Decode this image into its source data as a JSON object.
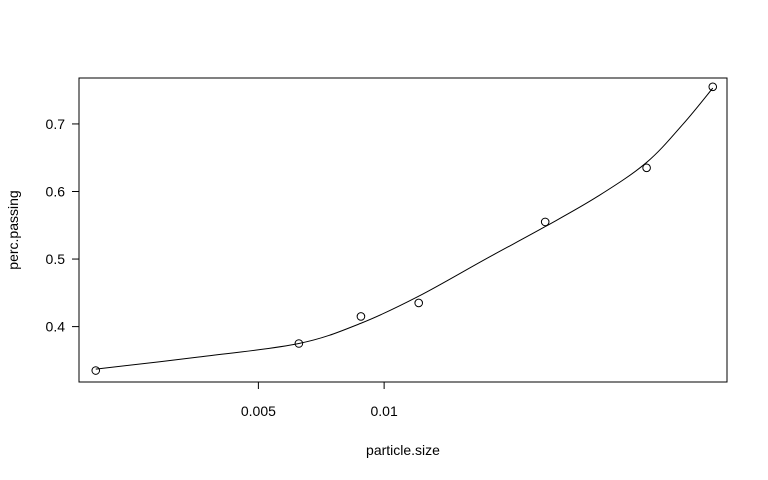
{
  "chart_data": {
    "type": "scatter",
    "title": "",
    "xlabel": "particle.size",
    "ylabel": "perc.passing",
    "x_scale": "log",
    "xlim": [
      0.00186,
      0.0662
    ],
    "ylim": [
      0.318,
      0.768
    ],
    "x_ticks": [
      {
        "value": 0.005,
        "label": "0.005"
      },
      {
        "value": 0.01,
        "label": "0.01"
      }
    ],
    "y_ticks": [
      {
        "value": 0.4,
        "label": "0.4"
      },
      {
        "value": 0.5,
        "label": "0.5"
      },
      {
        "value": 0.6,
        "label": "0.6"
      },
      {
        "value": 0.7,
        "label": "0.7"
      }
    ],
    "grid": false,
    "legend": "none",
    "series": [
      {
        "type": "points",
        "marker": "open-circle",
        "x": [
          0.00204,
          0.00625,
          0.0088,
          0.0121,
          0.0243,
          0.0425,
          0.0612
        ],
        "y": [
          0.335,
          0.375,
          0.415,
          0.435,
          0.555,
          0.635,
          0.755
        ]
      },
      {
        "type": "line",
        "style": "smooth-fit",
        "x": [
          0.00204,
          0.0036,
          0.00625,
          0.0088,
          0.0121,
          0.0175,
          0.0243,
          0.0325,
          0.0425,
          0.052,
          0.0612
        ],
        "y": [
          0.337,
          0.355,
          0.375,
          0.405,
          0.445,
          0.5,
          0.548,
          0.593,
          0.643,
          0.7,
          0.753
        ]
      }
    ]
  }
}
